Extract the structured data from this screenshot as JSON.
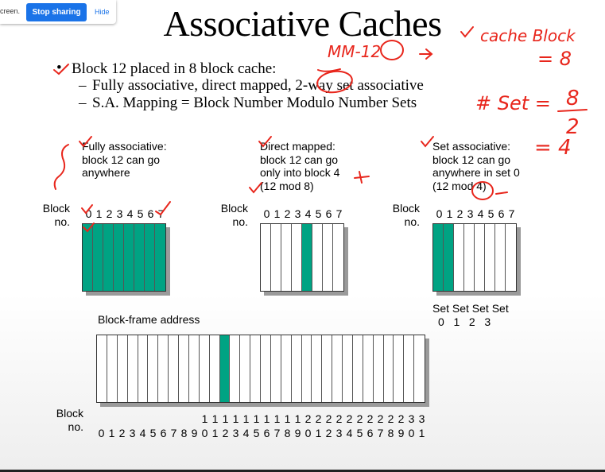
{
  "share_bar": {
    "message": "creen.",
    "stop_label": "Stop sharing",
    "hide_label": "Hide"
  },
  "slide": {
    "title": "Associative Caches",
    "bullet": "Block 12 placed in 8 block cache:",
    "sub1": "Fully associative, direct mapped, 2-way set associative",
    "sub2": "S.A. Mapping = Block Number Modulo Number Sets",
    "bullet_marker": "•",
    "dash": "–",
    "fully": {
      "lines": [
        "Fully associative:",
        "block 12 can go",
        "anywhere"
      ]
    },
    "direct": {
      "lines": [
        "Direct mapped:",
        "block 12 can go",
        "only into block 4",
        "(12 mod 8)"
      ]
    },
    "setassoc": {
      "lines": [
        "Set associative:",
        "block 12 can go",
        "anywhere in set 0",
        "(12 mod 4)"
      ]
    },
    "block_label_1": "Block",
    "block_label_2": "no.",
    "cache_blocks": [
      "0",
      "1",
      "2",
      "3",
      "4",
      "5",
      "6",
      "7"
    ],
    "set_row1": "Set Set Set Set",
    "set_row2": "0   1   2   3",
    "frame_label": "Block-frame address",
    "mem_tens": [
      "",
      "",
      "",
      "",
      "",
      "",
      "",
      "",
      "",
      "",
      "1",
      "1",
      "1",
      "1",
      "1",
      "1",
      "1",
      "1",
      "1",
      "1",
      "2",
      "2",
      "2",
      "2",
      "2",
      "2",
      "2",
      "2",
      "2",
      "2",
      "3",
      "3"
    ],
    "mem_ones": [
      "0",
      "1",
      "2",
      "3",
      "4",
      "5",
      "6",
      "7",
      "8",
      "9",
      "0",
      "1",
      "2",
      "3",
      "4",
      "5",
      "6",
      "7",
      "8",
      "9",
      "0",
      "1",
      "2",
      "3",
      "4",
      "5",
      "6",
      "7",
      "8",
      "9",
      "0",
      "1"
    ]
  },
  "annotations": {
    "mm": "MM-12",
    "cache": "cache Block",
    "eight": "= 8",
    "set": "# Set =",
    "num": "8",
    "den": "2",
    "eq4": "= 4"
  },
  "colors": {
    "fill": "#00a383",
    "ink": "#e8261c"
  }
}
